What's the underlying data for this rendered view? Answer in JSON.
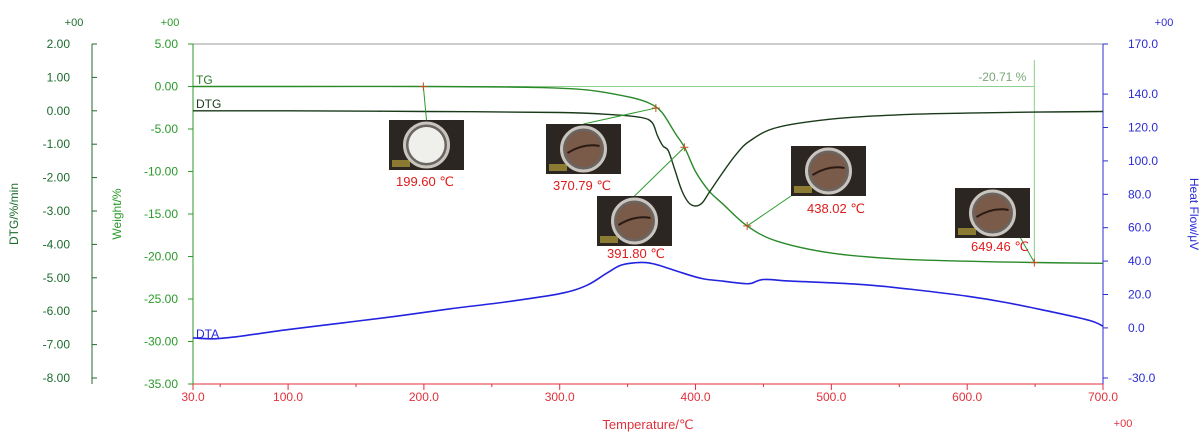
{
  "chart_data": {
    "type": "line",
    "title": "",
    "x_axis": {
      "label": "Temperature/℃",
      "range": [
        30,
        700
      ],
      "ticks": [
        "30.0",
        "100.0",
        "200.0",
        "300.0",
        "400.0",
        "500.0",
        "600.0",
        "700.0"
      ],
      "tick_values": [
        30,
        100,
        200,
        300,
        400,
        500,
        600,
        700
      ],
      "exponent": "+00",
      "color": "#e0313b"
    },
    "y_axes": {
      "dtg": {
        "label": "DTG/%/min",
        "range": [
          -8,
          2
        ],
        "ticks": [
          "2.00",
          "1.00",
          "0.00",
          "-1.00",
          "-2.00",
          "-3.00",
          "-4.00",
          "-5.00",
          "-6.00",
          "-7.00",
          "-8.00"
        ],
        "tick_values": [
          2,
          1,
          0,
          -1,
          -2,
          -3,
          -4,
          -5,
          -6,
          -7,
          -8
        ],
        "exponent": "+00",
        "color": "#1d6b2e"
      },
      "weight": {
        "label": "Weight/%",
        "range": [
          -35,
          5
        ],
        "ticks": [
          "5.00",
          "0.00",
          "-5.00",
          "-10.00",
          "-15.00",
          "-20.00",
          "-25.00",
          "-30.00",
          "-35.00"
        ],
        "tick_values": [
          5,
          0,
          -5,
          -10,
          -15,
          -20,
          -25,
          -30,
          -35
        ],
        "exponent": "+00",
        "color": "#2a9a2a"
      },
      "heat_flow": {
        "label": "Heat Flow/μV",
        "range": [
          -30,
          170
        ],
        "ticks": [
          "170.0",
          "140.0",
          "120.0",
          "100.0",
          "80.0",
          "60.0",
          "40.0",
          "20.0",
          "0.0",
          "-30.0"
        ],
        "tick_values": [
          170,
          140,
          120,
          100,
          80,
          60,
          40,
          20,
          0,
          -30
        ],
        "exponent": "+00",
        "color": "#2b2bd6"
      }
    },
    "series": [
      {
        "name": "TG",
        "axis": "weight",
        "color": "#2a8a2a",
        "x": [
          30,
          100,
          200,
          280,
          320,
          350,
          365,
          375,
          385,
          392,
          400,
          410,
          420,
          438,
          460,
          500,
          550,
          600,
          649,
          700
        ],
        "y": [
          0.0,
          0.0,
          0.0,
          -0.1,
          -0.4,
          -1.2,
          -1.9,
          -3.0,
          -5.5,
          -7.2,
          -10.0,
          -12.3,
          -13.8,
          -16.4,
          -18.2,
          -19.6,
          -20.3,
          -20.55,
          -20.71,
          -20.8
        ]
      },
      {
        "name": "DTG",
        "axis": "dtg",
        "color": "#1a3a1a",
        "x": [
          30,
          100,
          200,
          300,
          340,
          360,
          368,
          372,
          376,
          380,
          385,
          390,
          395,
          400,
          405,
          410,
          420,
          430,
          440,
          460,
          500,
          550,
          600,
          650,
          700
        ],
        "y": [
          0.0,
          0.0,
          -0.02,
          -0.05,
          -0.12,
          -0.2,
          -0.35,
          -0.75,
          -1.05,
          -1.2,
          -1.8,
          -2.4,
          -2.75,
          -2.85,
          -2.75,
          -2.45,
          -1.85,
          -1.3,
          -0.9,
          -0.5,
          -0.25,
          -0.12,
          -0.07,
          -0.04,
          -0.02
        ]
      },
      {
        "name": "DTA",
        "axis": "heat_flow",
        "color": "#2323e0",
        "x": [
          30,
          45,
          60,
          100,
          140,
          180,
          220,
          260,
          300,
          320,
          335,
          345,
          355,
          365,
          375,
          390,
          405,
          420,
          430,
          440,
          450,
          470,
          500,
          530,
          560,
          600,
          630,
          660,
          690,
          700
        ],
        "y": [
          -6.0,
          -6.5,
          -5.5,
          -1.0,
          3.0,
          7.0,
          11.5,
          15.5,
          20.5,
          25.5,
          33.0,
          37.5,
          39.0,
          39.0,
          37.0,
          33.0,
          29.5,
          28.0,
          27.0,
          26.5,
          29.0,
          28.0,
          27.0,
          25.5,
          23.0,
          19.0,
          15.0,
          10.0,
          4.5,
          1.0
        ]
      }
    ],
    "annotations": [
      {
        "label": "199.60 ℃",
        "temperature": 199.6,
        "weight": -0.02,
        "color": "#e01b1b"
      },
      {
        "label": "370.79 ℃",
        "temperature": 370.79,
        "weight": -2.4,
        "color": "#e01b1b"
      },
      {
        "label": "391.80 ℃",
        "temperature": 391.8,
        "weight": -7.2,
        "color": "#e01b1b"
      },
      {
        "label": "438.02 ℃",
        "temperature": 438.02,
        "weight": -16.4,
        "color": "#e01b1b"
      },
      {
        "label": "649.46 ℃",
        "temperature": 649.46,
        "weight": -20.71,
        "color": "#e01b1b"
      }
    ],
    "mass_loss_label": "-20.71 %",
    "mass_loss_temperature": 649.46,
    "series_labels": [
      "TG",
      "DTG",
      "DTA"
    ],
    "grid": false,
    "legend": "inline"
  }
}
